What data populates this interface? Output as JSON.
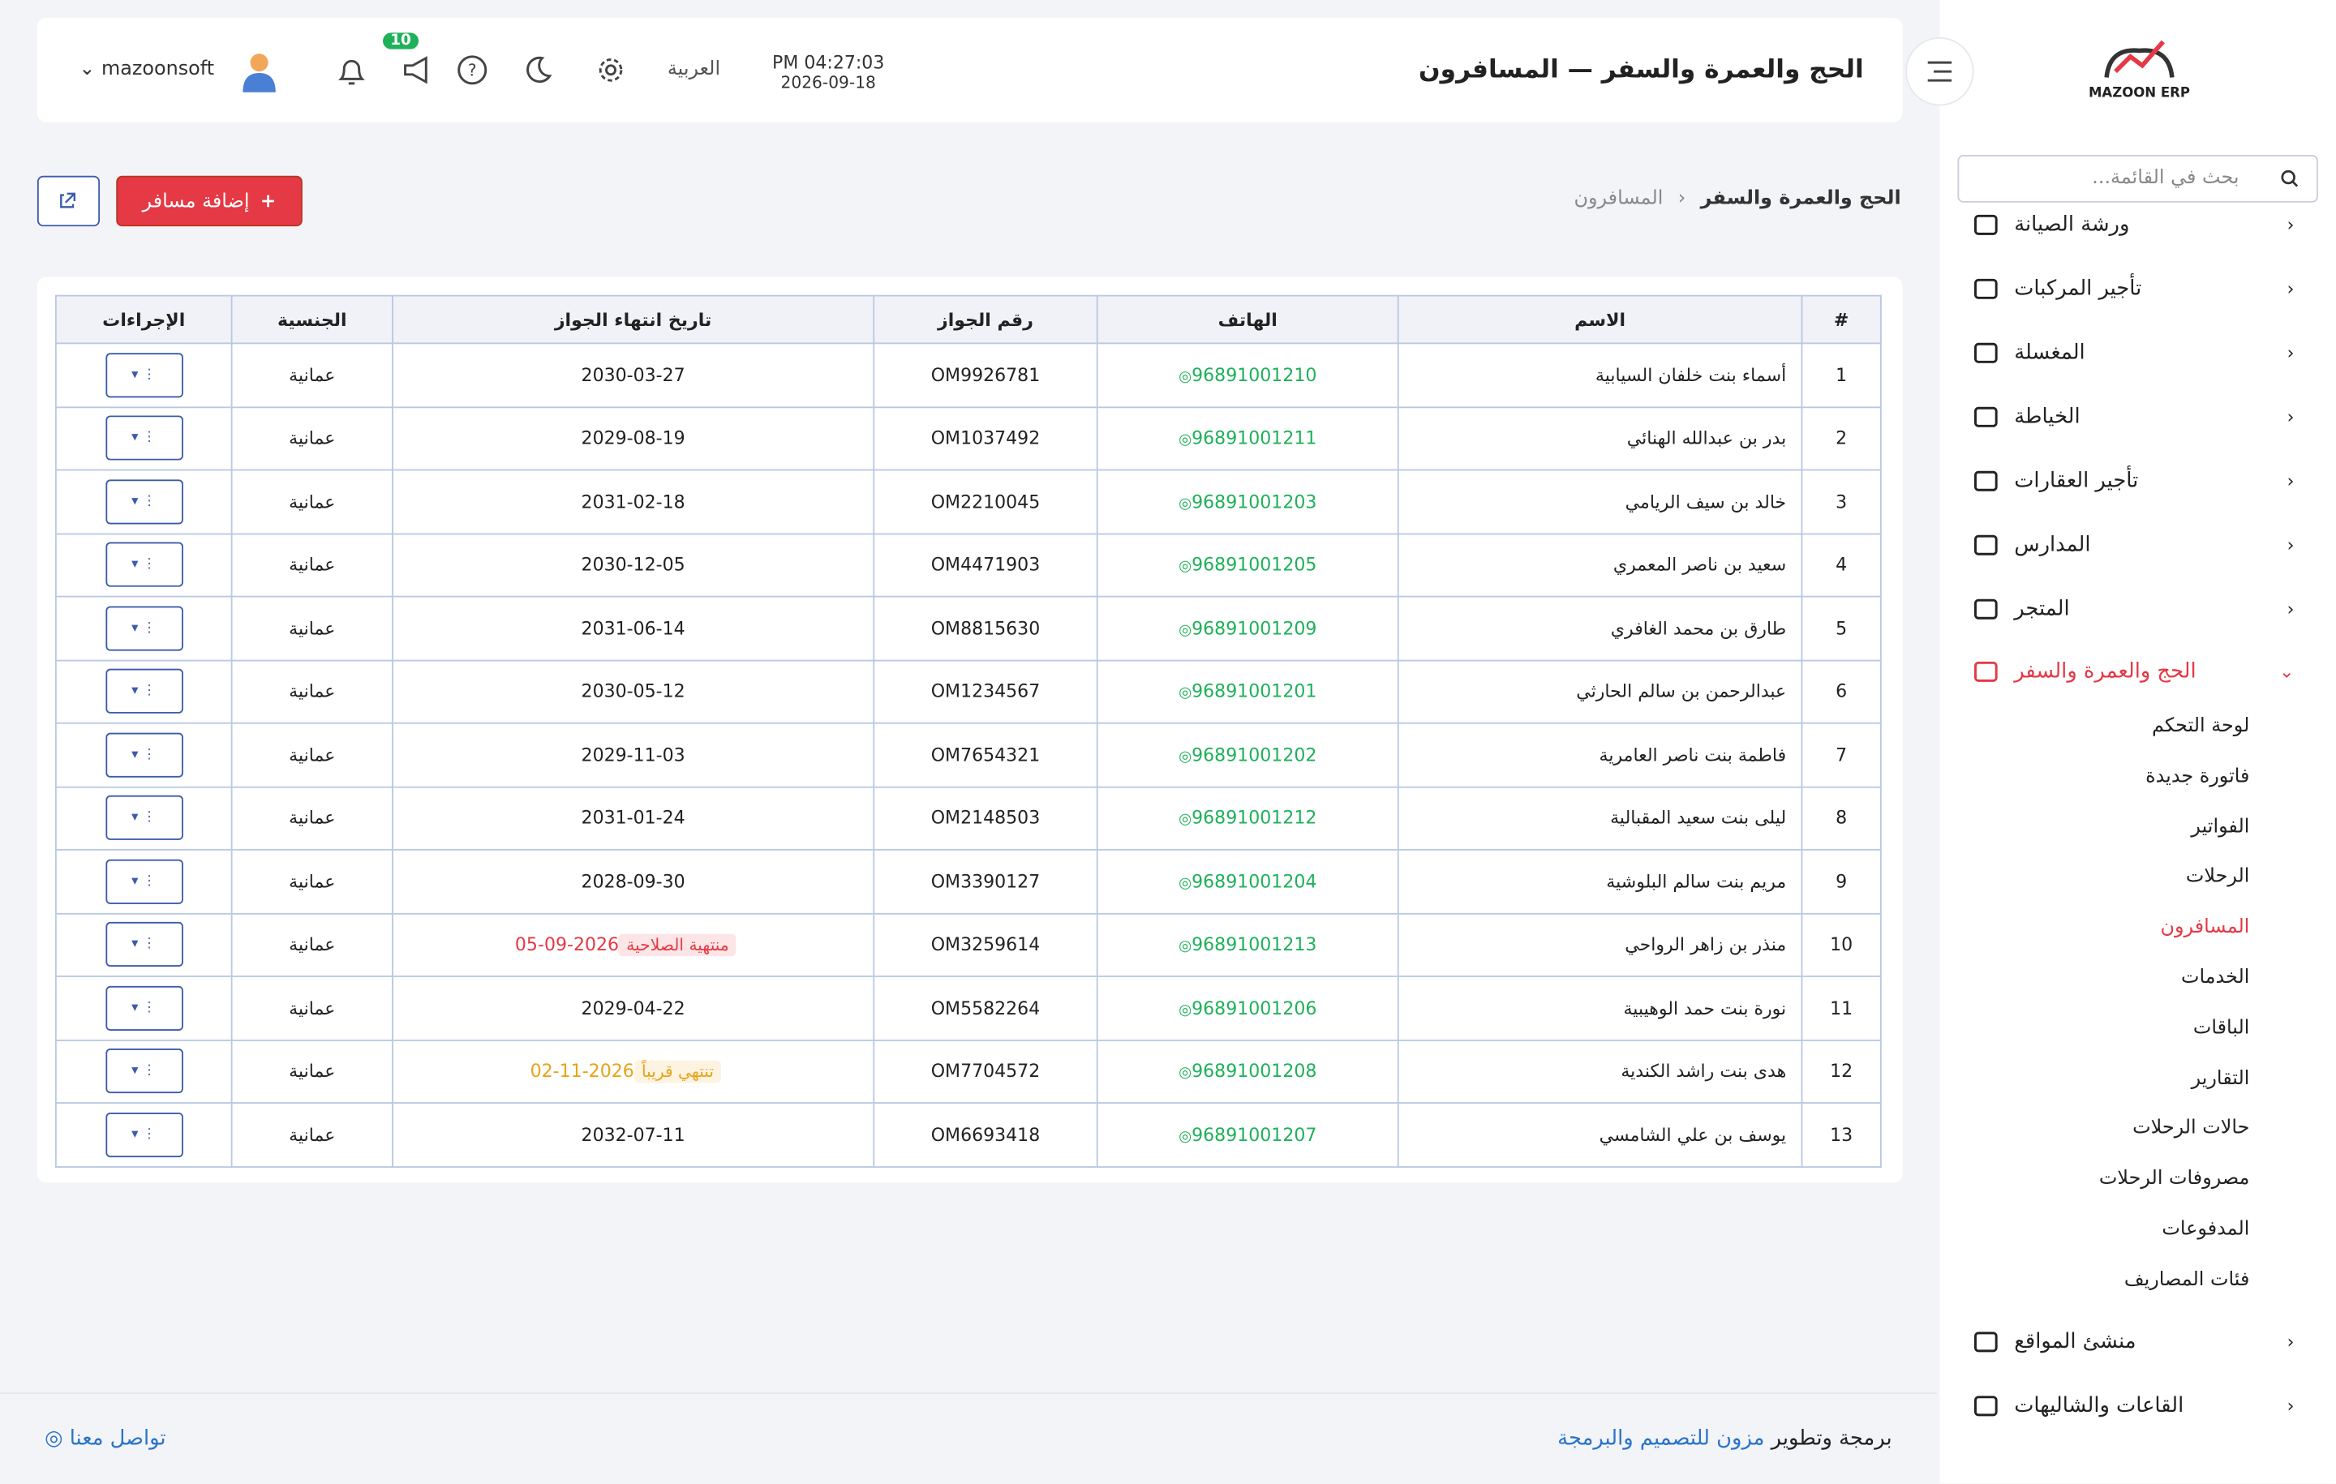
{
  "sidebar": {
    "brand": "MAZOON ERP",
    "search_placeholder": "بحث في القائمة...",
    "menu_top": [
      "ورشة الصيانة",
      "تأجير المركبات",
      "المغسلة",
      "الخياطة",
      "تأجير العقارات",
      "المدارس",
      "المتجر"
    ],
    "active_group": {
      "label": "الحج والعمرة والسفر",
      "color": "#e53945",
      "items": [
        "لوحة التحكم",
        "فاتورة جديدة",
        "الفواتير",
        "الرحلات",
        "المسافرون",
        "الخدمات",
        "الباقات",
        "التقارير",
        "حالات الرحلات",
        "مصروفات الرحلات",
        "المدفوعات",
        "فئات المصاريف"
      ],
      "active_item": 4
    },
    "menu_bottom": [
      "منشئ المواقع",
      "القاعات والشاليهات"
    ]
  },
  "header": {
    "title": "الحج والعمرة والسفر — المسافرون",
    "time": "PM 04:27:03",
    "date": "2026-09-18",
    "language": "العربية",
    "notifications": 10,
    "user": "mazoonsoft"
  },
  "breadcrumb": [
    "الحج والعمرة والسفر",
    "المسافرون"
  ],
  "add_button": "إضافة مسافر",
  "table": {
    "columns": [
      "#",
      "الاسم",
      "الهاتف",
      "رقم الجواز",
      "تاريخ انتهاء الجواز",
      "الجنسية",
      "الإجراءات"
    ],
    "rows": [
      {
        "no": 1,
        "name": "أسماء بنت خلفان السيابية",
        "phone": "96891001210",
        "passport": "OM9926781",
        "expiry": "2030-03-27",
        "nationality": "عمانية"
      },
      {
        "no": 2,
        "name": "بدر بن عبدالله الهنائي",
        "phone": "96891001211",
        "passport": "OM1037492",
        "expiry": "2029-08-19",
        "nationality": "عمانية"
      },
      {
        "no": 3,
        "name": "خالد بن سيف الريامي",
        "phone": "96891001203",
        "passport": "OM2210045",
        "expiry": "2031-02-18",
        "nationality": "عمانية"
      },
      {
        "no": 4,
        "name": "سعيد بن ناصر المعمري",
        "phone": "96891001205",
        "passport": "OM4471903",
        "expiry": "2030-12-05",
        "nationality": "عمانية"
      },
      {
        "no": 5,
        "name": "طارق بن محمد الغافري",
        "phone": "96891001209",
        "passport": "OM8815630",
        "expiry": "2031-06-14",
        "nationality": "عمانية"
      },
      {
        "no": 6,
        "name": "عبدالرحمن بن سالم الحارثي",
        "phone": "96891001201",
        "passport": "OM1234567",
        "expiry": "2030-05-12",
        "nationality": "عمانية"
      },
      {
        "no": 7,
        "name": "فاطمة بنت ناصر العامرية",
        "phone": "96891001202",
        "passport": "OM7654321",
        "expiry": "2029-11-03",
        "nationality": "عمانية"
      },
      {
        "no": 8,
        "name": "ليلى بنت سعيد المقبالية",
        "phone": "96891001212",
        "passport": "OM2148503",
        "expiry": "2031-01-24",
        "nationality": "عمانية"
      },
      {
        "no": 9,
        "name": "مريم بنت سالم البلوشية",
        "phone": "96891001204",
        "passport": "OM3390127",
        "expiry": "2028-09-30",
        "nationality": "عمانية"
      },
      {
        "no": 10,
        "name": "منذر بن زاهر الرواحي",
        "phone": "96891001213",
        "passport": "OM3259614",
        "expiry": "2026-09-05",
        "nationality": "عمانية",
        "status": {
          "text": "منتهية الصلاحية",
          "color": "#e53945"
        }
      },
      {
        "no": 11,
        "name": "نورة بنت حمد الوهيبية",
        "phone": "96891001206",
        "passport": "OM5582264",
        "expiry": "2029-04-22",
        "nationality": "عمانية"
      },
      {
        "no": 12,
        "name": "هدى بنت راشد الكندية",
        "phone": "96891001208",
        "passport": "OM7704572",
        "expiry": "2026-11-02",
        "nationality": "عمانية",
        "status": {
          "text": "تنتهي قريباً",
          "color": "#e8a317"
        }
      },
      {
        "no": 13,
        "name": "يوسف بن علي الشامسي",
        "phone": "96891001207",
        "passport": "OM6693418",
        "expiry": "2032-07-11",
        "nationality": "عمانية"
      }
    ]
  },
  "footer": {
    "prefix": "برمجة وتطوير",
    "company": "مزون للتصميم والبرمجة",
    "contact": "تواصل معنا"
  }
}
